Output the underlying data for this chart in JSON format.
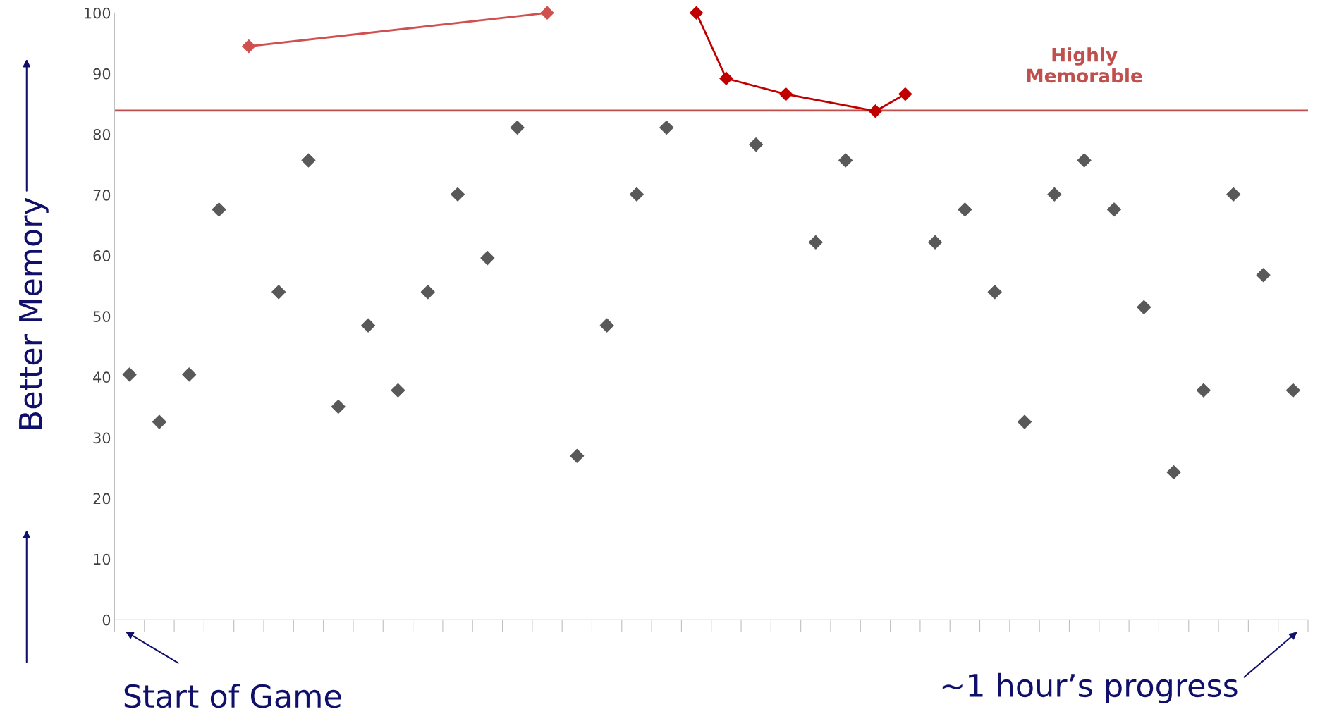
{
  "chart_data": {
    "type": "scatter",
    "ylabel": "Better Memory",
    "categories": [
      null,
      null,
      null,
      null,
      null,
      null,
      null,
      null,
      null,
      null,
      null,
      null,
      null,
      null,
      null,
      null,
      null,
      null,
      null,
      null,
      null,
      null,
      null,
      null,
      null,
      null,
      null,
      null,
      null,
      null,
      null,
      null,
      null,
      null,
      null,
      null,
      null,
      null,
      null,
      null
    ],
    "series": [
      {
        "color": "#595959",
        "marker": "diamond",
        "values": [
          40.4,
          32.6,
          40.4,
          67.6,
          null,
          54,
          75.7,
          35.1,
          48.5,
          37.8,
          54,
          70.1,
          59.6,
          81.1,
          null,
          27,
          48.5,
          70.1,
          81.1,
          null,
          null,
          78.3,
          null,
          62.2,
          75.7,
          null,
          null,
          62.2,
          67.6,
          54,
          32.6,
          70.1,
          75.7,
          67.6,
          51.5,
          24.3,
          37.8,
          70.1,
          56.8,
          37.8
        ]
      },
      {
        "type": "line",
        "color": "#d05050",
        "marker": "diamond",
        "values": [
          null,
          null,
          null,
          null,
          94.5,
          null,
          null,
          null,
          null,
          null,
          null,
          null,
          null,
          null,
          100,
          null,
          null,
          null,
          null,
          null,
          null,
          null,
          null,
          null,
          null,
          null,
          null,
          null,
          null,
          null,
          null,
          null,
          null,
          null,
          null,
          null,
          null,
          null,
          null,
          null
        ]
      },
      {
        "type": "line",
        "color": "#c00000",
        "marker": "diamond",
        "values": [
          null,
          null,
          null,
          null,
          null,
          null,
          null,
          null,
          null,
          null,
          null,
          null,
          null,
          null,
          null,
          null,
          null,
          null,
          null,
          100,
          89.2,
          null,
          86.6,
          null,
          null,
          83.8,
          86.6,
          null,
          null,
          null,
          null,
          null,
          null,
          null,
          null,
          null,
          null,
          null,
          null,
          null
        ]
      }
    ],
    "ylim": [
      0,
      100
    ],
    "yticks": [
      0,
      10,
      20,
      30,
      40,
      50,
      60,
      70,
      80,
      90,
      100
    ],
    "grid": false,
    "legend": false,
    "ref_lines": [
      {
        "axis": "y",
        "value": 83.9,
        "label": "Highly\nMemorable",
        "color": "#c0504d"
      }
    ],
    "annotations": [
      "Start of Game",
      "~1 hour’s progress"
    ]
  }
}
